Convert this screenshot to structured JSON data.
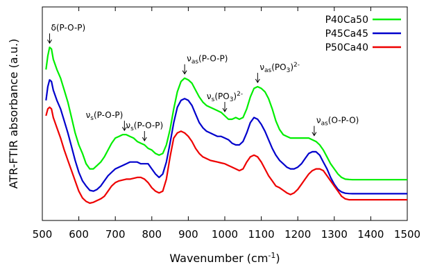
{
  "chart_data": {
    "type": "line",
    "xlabel": "Wavenumber (cm",
    "xlabel_sup": "-1",
    "xlabel_end": ")",
    "ylabel": "ATR-FTIR absorbance (a.u.)",
    "xlim": [
      500,
      1500
    ],
    "xticks": [
      500,
      600,
      700,
      800,
      900,
      1000,
      1100,
      1200,
      1300,
      1400,
      1500
    ],
    "yticks_shown": false,
    "legend_position": "top-right",
    "series": [
      {
        "name": "P40Ca50",
        "color": "#00ee00",
        "points": [
          [
            510,
            0.78
          ],
          [
            515,
            0.86
          ],
          [
            520,
            0.91
          ],
          [
            525,
            0.9
          ],
          [
            530,
            0.84
          ],
          [
            540,
            0.78
          ],
          [
            550,
            0.73
          ],
          [
            560,
            0.66
          ],
          [
            570,
            0.59
          ],
          [
            580,
            0.5
          ],
          [
            590,
            0.41
          ],
          [
            600,
            0.34
          ],
          [
            610,
            0.29
          ],
          [
            620,
            0.23
          ],
          [
            630,
            0.2
          ],
          [
            640,
            0.2
          ],
          [
            650,
            0.22
          ],
          [
            660,
            0.24
          ],
          [
            670,
            0.27
          ],
          [
            680,
            0.31
          ],
          [
            690,
            0.35
          ],
          [
            700,
            0.38
          ],
          [
            710,
            0.39
          ],
          [
            720,
            0.4
          ],
          [
            730,
            0.4
          ],
          [
            740,
            0.39
          ],
          [
            750,
            0.38
          ],
          [
            760,
            0.36
          ],
          [
            770,
            0.35
          ],
          [
            780,
            0.34
          ],
          [
            790,
            0.32
          ],
          [
            800,
            0.31
          ],
          [
            810,
            0.29
          ],
          [
            820,
            0.28
          ],
          [
            830,
            0.29
          ],
          [
            840,
            0.34
          ],
          [
            850,
            0.43
          ],
          [
            860,
            0.55
          ],
          [
            870,
            0.65
          ],
          [
            880,
            0.71
          ],
          [
            890,
            0.73
          ],
          [
            900,
            0.72
          ],
          [
            910,
            0.7
          ],
          [
            920,
            0.66
          ],
          [
            930,
            0.62
          ],
          [
            940,
            0.59
          ],
          [
            950,
            0.57
          ],
          [
            960,
            0.56
          ],
          [
            970,
            0.55
          ],
          [
            980,
            0.54
          ],
          [
            990,
            0.53
          ],
          [
            1000,
            0.51
          ],
          [
            1010,
            0.49
          ],
          [
            1020,
            0.49
          ],
          [
            1030,
            0.5
          ],
          [
            1040,
            0.49
          ],
          [
            1050,
            0.5
          ],
          [
            1060,
            0.55
          ],
          [
            1070,
            0.62
          ],
          [
            1080,
            0.67
          ],
          [
            1090,
            0.68
          ],
          [
            1100,
            0.67
          ],
          [
            1110,
            0.65
          ],
          [
            1120,
            0.61
          ],
          [
            1130,
            0.55
          ],
          [
            1140,
            0.48
          ],
          [
            1150,
            0.43
          ],
          [
            1160,
            0.4
          ],
          [
            1170,
            0.39
          ],
          [
            1180,
            0.38
          ],
          [
            1190,
            0.38
          ],
          [
            1200,
            0.38
          ],
          [
            1210,
            0.38
          ],
          [
            1220,
            0.38
          ],
          [
            1230,
            0.38
          ],
          [
            1240,
            0.37
          ],
          [
            1250,
            0.36
          ],
          [
            1260,
            0.34
          ],
          [
            1270,
            0.31
          ],
          [
            1280,
            0.27
          ],
          [
            1290,
            0.23
          ],
          [
            1300,
            0.2
          ],
          [
            1310,
            0.17
          ],
          [
            1320,
            0.15
          ],
          [
            1330,
            0.14
          ],
          [
            1340,
            0.138
          ],
          [
            1350,
            0.137
          ],
          [
            1400,
            0.137
          ],
          [
            1450,
            0.137
          ],
          [
            1500,
            0.137
          ]
        ]
      },
      {
        "name": "P45Ca45",
        "color": "#0000cc",
        "points": [
          [
            510,
            0.6
          ],
          [
            515,
            0.68
          ],
          [
            520,
            0.72
          ],
          [
            525,
            0.71
          ],
          [
            530,
            0.66
          ],
          [
            540,
            0.6
          ],
          [
            550,
            0.55
          ],
          [
            560,
            0.48
          ],
          [
            570,
            0.41
          ],
          [
            580,
            0.33
          ],
          [
            590,
            0.25
          ],
          [
            600,
            0.18
          ],
          [
            610,
            0.13
          ],
          [
            620,
            0.1
          ],
          [
            630,
            0.075
          ],
          [
            640,
            0.07
          ],
          [
            650,
            0.08
          ],
          [
            660,
            0.1
          ],
          [
            670,
            0.13
          ],
          [
            680,
            0.16
          ],
          [
            690,
            0.18
          ],
          [
            700,
            0.2
          ],
          [
            710,
            0.21
          ],
          [
            720,
            0.22
          ],
          [
            730,
            0.23
          ],
          [
            740,
            0.24
          ],
          [
            750,
            0.24
          ],
          [
            760,
            0.24
          ],
          [
            770,
            0.23
          ],
          [
            780,
            0.23
          ],
          [
            790,
            0.23
          ],
          [
            800,
            0.2
          ],
          [
            810,
            0.17
          ],
          [
            820,
            0.15
          ],
          [
            830,
            0.17
          ],
          [
            840,
            0.24
          ],
          [
            850,
            0.35
          ],
          [
            860,
            0.47
          ],
          [
            870,
            0.56
          ],
          [
            880,
            0.6
          ],
          [
            890,
            0.61
          ],
          [
            900,
            0.6
          ],
          [
            910,
            0.57
          ],
          [
            920,
            0.52
          ],
          [
            930,
            0.47
          ],
          [
            940,
            0.44
          ],
          [
            950,
            0.42
          ],
          [
            960,
            0.41
          ],
          [
            970,
            0.4
          ],
          [
            980,
            0.39
          ],
          [
            990,
            0.39
          ],
          [
            1000,
            0.38
          ],
          [
            1010,
            0.37
          ],
          [
            1020,
            0.35
          ],
          [
            1030,
            0.34
          ],
          [
            1040,
            0.34
          ],
          [
            1050,
            0.36
          ],
          [
            1060,
            0.41
          ],
          [
            1070,
            0.47
          ],
          [
            1080,
            0.5
          ],
          [
            1090,
            0.49
          ],
          [
            1100,
            0.46
          ],
          [
            1110,
            0.42
          ],
          [
            1120,
            0.37
          ],
          [
            1130,
            0.32
          ],
          [
            1140,
            0.28
          ],
          [
            1150,
            0.25
          ],
          [
            1160,
            0.23
          ],
          [
            1170,
            0.21
          ],
          [
            1180,
            0.2
          ],
          [
            1190,
            0.2
          ],
          [
            1200,
            0.21
          ],
          [
            1210,
            0.23
          ],
          [
            1220,
            0.26
          ],
          [
            1230,
            0.29
          ],
          [
            1240,
            0.3
          ],
          [
            1250,
            0.3
          ],
          [
            1260,
            0.28
          ],
          [
            1270,
            0.24
          ],
          [
            1280,
            0.2
          ],
          [
            1290,
            0.15
          ],
          [
            1300,
            0.11
          ],
          [
            1310,
            0.08
          ],
          [
            1320,
            0.065
          ],
          [
            1330,
            0.058
          ],
          [
            1340,
            0.056
          ],
          [
            1350,
            0.055
          ],
          [
            1400,
            0.055
          ],
          [
            1450,
            0.055
          ],
          [
            1500,
            0.055
          ]
        ]
      },
      {
        "name": "P50Ca40",
        "color": "#ee0000",
        "points": [
          [
            510,
            0.51
          ],
          [
            515,
            0.55
          ],
          [
            520,
            0.56
          ],
          [
            525,
            0.55
          ],
          [
            530,
            0.5
          ],
          [
            540,
            0.44
          ],
          [
            550,
            0.38
          ],
          [
            560,
            0.31
          ],
          [
            570,
            0.25
          ],
          [
            580,
            0.19
          ],
          [
            590,
            0.13
          ],
          [
            600,
            0.07
          ],
          [
            610,
            0.03
          ],
          [
            620,
            0.01
          ],
          [
            630,
            0.0
          ],
          [
            640,
            0.005
          ],
          [
            650,
            0.015
          ],
          [
            660,
            0.025
          ],
          [
            670,
            0.04
          ],
          [
            680,
            0.07
          ],
          [
            690,
            0.1
          ],
          [
            700,
            0.12
          ],
          [
            710,
            0.13
          ],
          [
            720,
            0.135
          ],
          [
            730,
            0.14
          ],
          [
            740,
            0.14
          ],
          [
            750,
            0.145
          ],
          [
            760,
            0.15
          ],
          [
            770,
            0.15
          ],
          [
            780,
            0.14
          ],
          [
            790,
            0.12
          ],
          [
            800,
            0.09
          ],
          [
            810,
            0.07
          ],
          [
            820,
            0.06
          ],
          [
            830,
            0.07
          ],
          [
            840,
            0.14
          ],
          [
            850,
            0.27
          ],
          [
            860,
            0.38
          ],
          [
            870,
            0.41
          ],
          [
            880,
            0.42
          ],
          [
            890,
            0.41
          ],
          [
            900,
            0.39
          ],
          [
            910,
            0.36
          ],
          [
            920,
            0.32
          ],
          [
            930,
            0.29
          ],
          [
            940,
            0.27
          ],
          [
            950,
            0.26
          ],
          [
            960,
            0.25
          ],
          [
            970,
            0.245
          ],
          [
            980,
            0.24
          ],
          [
            990,
            0.235
          ],
          [
            1000,
            0.23
          ],
          [
            1010,
            0.22
          ],
          [
            1020,
            0.21
          ],
          [
            1030,
            0.2
          ],
          [
            1040,
            0.19
          ],
          [
            1050,
            0.2
          ],
          [
            1060,
            0.24
          ],
          [
            1070,
            0.27
          ],
          [
            1080,
            0.28
          ],
          [
            1090,
            0.27
          ],
          [
            1100,
            0.24
          ],
          [
            1110,
            0.2
          ],
          [
            1120,
            0.16
          ],
          [
            1130,
            0.13
          ],
          [
            1140,
            0.1
          ],
          [
            1150,
            0.09
          ],
          [
            1160,
            0.075
          ],
          [
            1170,
            0.06
          ],
          [
            1180,
            0.05
          ],
          [
            1190,
            0.06
          ],
          [
            1200,
            0.08
          ],
          [
            1210,
            0.11
          ],
          [
            1220,
            0.14
          ],
          [
            1230,
            0.17
          ],
          [
            1240,
            0.19
          ],
          [
            1250,
            0.2
          ],
          [
            1260,
            0.2
          ],
          [
            1270,
            0.19
          ],
          [
            1280,
            0.16
          ],
          [
            1290,
            0.13
          ],
          [
            1300,
            0.1
          ],
          [
            1310,
            0.07
          ],
          [
            1320,
            0.04
          ],
          [
            1330,
            0.025
          ],
          [
            1340,
            0.02
          ],
          [
            1350,
            0.02
          ],
          [
            1400,
            0.02
          ],
          [
            1450,
            0.02
          ],
          [
            1500,
            0.02
          ]
        ]
      }
    ],
    "annotations": [
      {
        "label": "δ(P-O-P)",
        "x": 520,
        "arrow_to": 0.91,
        "align": "left"
      },
      {
        "label": "ν",
        "sub": "s",
        "rest": "(P-O-P)",
        "x": 725,
        "arrow_to": 0.4,
        "align": "right"
      },
      {
        "label": "ν",
        "sub": "s",
        "rest": "(P-O-P)",
        "x": 780,
        "arrow_to": 0.34,
        "align": "center"
      },
      {
        "label": "ν",
        "sub": "as",
        "rest": "(P-O-P)",
        "x": 890,
        "arrow_to": 0.73,
        "align": "left"
      },
      {
        "label": "ν",
        "sub": "s",
        "rest": "(PO",
        "sub2": "3",
        "rest2": ")",
        "sup": "2-",
        "x": 1000,
        "arrow_to": 0.51,
        "align": "center"
      },
      {
        "label": "ν",
        "sub": "as",
        "rest": "(PO",
        "sub2": "3",
        "rest2": ")",
        "sup": "2-",
        "x": 1090,
        "arrow_to": 0.68,
        "align": "left"
      },
      {
        "label": "ν",
        "sub": "as",
        "rest": "(O-P-O)",
        "x": 1245,
        "arrow_to": 0.37,
        "align": "left"
      }
    ]
  }
}
